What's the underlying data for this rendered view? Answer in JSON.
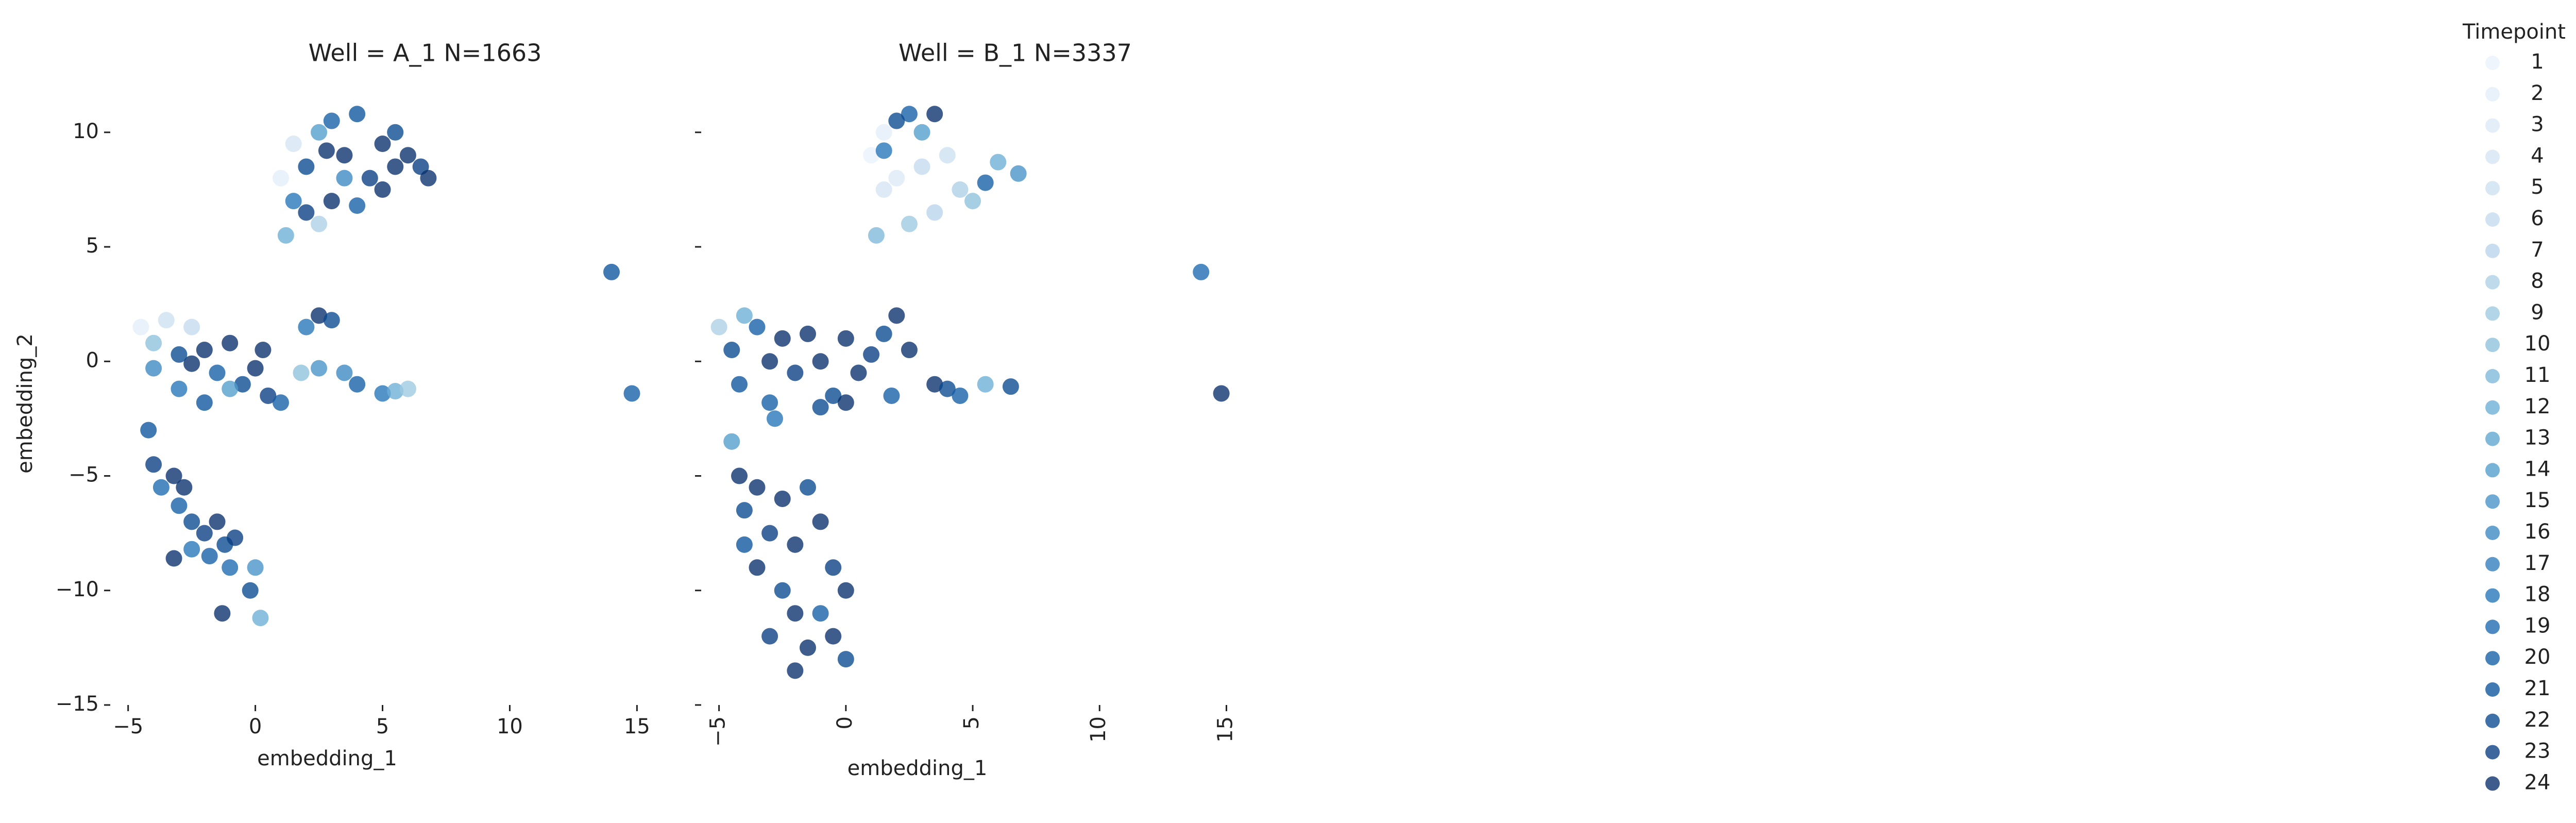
{
  "chart_data": {
    "type": "scatter",
    "x_label": "embedding_1",
    "y_label": "embedding_2",
    "xlim": [
      -5.5,
      15.6
    ],
    "ylim": [
      -15,
      11.3
    ],
    "xticks": [
      {
        "value": -5,
        "label": "−5"
      },
      0,
      5,
      10,
      15
    ],
    "yticks": [
      {
        "value": -15,
        "label": "−15"
      },
      {
        "value": -10,
        "label": "−10"
      },
      {
        "value": -5,
        "label": "−5"
      },
      0,
      5,
      10
    ],
    "legend_title": "Timepoint",
    "legend": [
      {
        "name": "1",
        "color": "#eaf2fb"
      },
      {
        "name": "2",
        "color": "#e3eef9"
      },
      {
        "name": "3",
        "color": "#dce9f6"
      },
      {
        "name": "4",
        "color": "#d5e5f4"
      },
      {
        "name": "5",
        "color": "#cde0f1"
      },
      {
        "name": "6",
        "color": "#c4daee"
      },
      {
        "name": "7",
        "color": "#b9d4eb"
      },
      {
        "name": "8",
        "color": "#acd0e6"
      },
      {
        "name": "9",
        "color": "#9dc9e2"
      },
      {
        "name": "10",
        "color": "#8dc1dd"
      },
      {
        "name": "11",
        "color": "#7db8da"
      },
      {
        "name": "12",
        "color": "#6caed6"
      },
      {
        "name": "13",
        "color": "#5ea5d1"
      },
      {
        "name": "14",
        "color": "#519ccc"
      },
      {
        "name": "15",
        "color": "#4592c6"
      },
      {
        "name": "16",
        "color": "#3a88c1"
      },
      {
        "name": "17",
        "color": "#2f7ebc"
      },
      {
        "name": "18",
        "color": "#2474b7"
      },
      {
        "name": "19",
        "color": "#1a69b0"
      },
      {
        "name": "20",
        "color": "#125ea6"
      },
      {
        "name": "21",
        "color": "#0c549c"
      },
      {
        "name": "22",
        "color": "#084990"
      },
      {
        "name": "23",
        "color": "#083e81"
      },
      {
        "name": "24",
        "color": "#08306b"
      }
    ],
    "panels": [
      {
        "title": "Well = A_1 N=1663",
        "x": [
          1.2,
          1.5,
          2,
          2.5,
          3,
          3.5,
          4,
          4.5,
          5,
          5.5,
          6,
          6.5,
          6.8,
          3,
          2,
          4,
          5,
          1.5,
          1,
          2.5,
          3.5,
          5.5,
          2.8,
          -4.5,
          -4,
          -3.5,
          -3,
          -2.5,
          -2,
          -1.5,
          -1,
          -0.5,
          0,
          0.5,
          1,
          -3,
          -2,
          -1,
          -4,
          0.3,
          -2.5,
          2,
          2.5,
          3,
          2.5,
          3.5,
          4,
          5,
          5.5,
          6,
          1.8,
          -4.2,
          -4,
          -3.7,
          -3.2,
          -3,
          -2.8,
          -2.5,
          -2,
          -1.5,
          -1.2,
          -1.8,
          -1,
          -0.8,
          -1.3,
          -0.2,
          0,
          0.2,
          -2.5,
          -3.2,
          14,
          14.8
        ],
        "y": [
          5.5,
          7,
          8.5,
          10,
          10.5,
          9,
          10.8,
          8,
          9.5,
          10,
          9,
          8.5,
          8,
          7,
          6.5,
          6.8,
          7.5,
          9.5,
          8,
          6,
          8,
          8.5,
          9.2,
          1.5,
          0.8,
          1.8,
          0.3,
          1.5,
          0.5,
          -0.5,
          0.8,
          -1,
          -0.3,
          -1.5,
          -1.8,
          -1.2,
          -1.8,
          -1.2,
          -0.3,
          0.5,
          -0.1,
          1.5,
          2,
          1.8,
          -0.3,
          -0.5,
          -1,
          -1.4,
          -1.3,
          -1.2,
          -0.5,
          -3,
          -4.5,
          -5.5,
          -5,
          -6.3,
          -5.5,
          -7,
          -7.5,
          -7,
          -8,
          -8.5,
          -9,
          -7.7,
          -11,
          -10,
          -9,
          -11.2,
          -8.2,
          -8.6,
          3.9,
          -1.4
        ],
        "timepoint": [
          12,
          18,
          22,
          14,
          20,
          24,
          21,
          23,
          24,
          22,
          24,
          23,
          24,
          24,
          23,
          20,
          24,
          4,
          2,
          8,
          16,
          24,
          24,
          2,
          10,
          5,
          22,
          6,
          24,
          20,
          24,
          22,
          24,
          23,
          20,
          18,
          21,
          14,
          16,
          24,
          24,
          18,
          24,
          22,
          15,
          16,
          20,
          18,
          12,
          9,
          10,
          21,
          23,
          19,
          24,
          20,
          24,
          22,
          23,
          24,
          22,
          20,
          19,
          23,
          24,
          22,
          15,
          12,
          18,
          24,
          21,
          20
        ]
      },
      {
        "title": "Well = B_1 N=3337",
        "x": [
          1,
          1.5,
          2,
          2.5,
          3,
          3.5,
          2,
          1.5,
          3,
          4,
          4.5,
          5,
          5.5,
          6,
          6.8,
          1.2,
          2.5,
          3.5,
          1.5,
          -5,
          -4.5,
          -4,
          -3.5,
          -3,
          -2.5,
          -2,
          -1.5,
          -1,
          -0.5,
          0,
          0.5,
          1,
          1.5,
          2,
          2.5,
          -3,
          -1,
          0,
          -2.8,
          -4.2,
          1.8,
          3.5,
          4,
          4.5,
          5.5,
          6.5,
          -4.5,
          -4.2,
          -4,
          -3.5,
          -3,
          -2.5,
          -2,
          -1.5,
          -1,
          -0.5,
          0,
          -3.5,
          -2.5,
          -2,
          -3,
          -1.5,
          -0.5,
          0,
          -2,
          -1,
          -4,
          14,
          14.8
        ],
        "y": [
          9,
          10,
          8,
          10.8,
          10,
          10.8,
          10.5,
          7.5,
          8.5,
          9,
          7.5,
          7,
          7.8,
          8.7,
          8.2,
          5.5,
          6,
          6.5,
          9.2,
          1.5,
          0.5,
          2,
          1.5,
          0,
          1,
          -0.5,
          1.2,
          0,
          -1.5,
          1,
          -0.5,
          0.3,
          1.2,
          2,
          0.5,
          -1.8,
          -2,
          -1.8,
          -2.5,
          -1,
          -1.5,
          -1,
          -1.2,
          -1.5,
          -1,
          -1.1,
          -3.5,
          -5,
          -6.5,
          -5.5,
          -7.5,
          -6,
          -8,
          -5.5,
          -7,
          -9,
          -10,
          -9,
          -10,
          -11,
          -12,
          -12.5,
          -12,
          -13,
          -13.5,
          -11,
          -8,
          3.9,
          -1.4
        ],
        "timepoint": [
          1,
          2,
          3,
          20,
          14,
          24,
          22,
          4,
          6,
          5,
          8,
          10,
          20,
          12,
          15,
          11,
          9,
          7,
          18,
          8,
          22,
          12,
          20,
          24,
          24,
          23,
          24,
          24,
          22,
          24,
          24,
          23,
          22,
          24,
          24,
          20,
          22,
          24,
          18,
          21,
          20,
          24,
          22,
          20,
          12,
          22,
          14,
          24,
          22,
          24,
          23,
          24,
          24,
          22,
          24,
          23,
          24,
          24,
          22,
          24,
          23,
          24,
          24,
          22,
          24,
          20,
          21,
          19,
          24
        ]
      }
    ]
  }
}
